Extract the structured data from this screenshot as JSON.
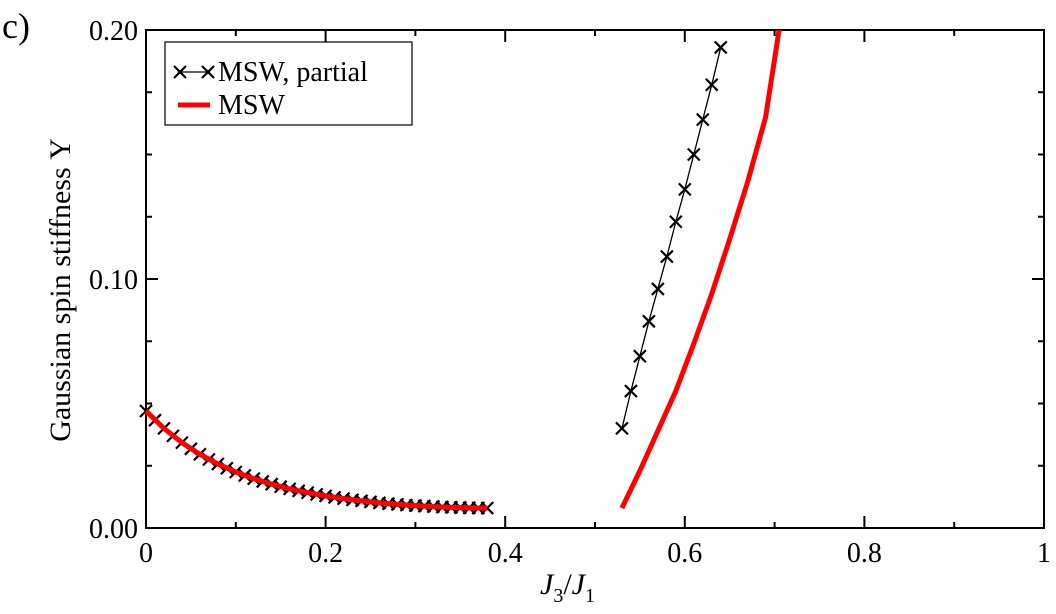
{
  "panel_label": "c)",
  "chart_data": {
    "type": "line",
    "xlabel": {
      "main": "J",
      "sub1": "3",
      "slash": "/",
      "main2": "J",
      "sub2": "1"
    },
    "ylabel": "Gaussian spin stiffness Υ",
    "xlim": [
      0,
      1
    ],
    "ylim": [
      0,
      0.2
    ],
    "x_ticks": [
      "0",
      "0.2",
      "0.4",
      "0.6",
      "0.8",
      "1"
    ],
    "x_tick_values": [
      0,
      0.2,
      0.4,
      0.6,
      0.8,
      1
    ],
    "y_ticks": [
      "0.00",
      "0.10",
      "0.20"
    ],
    "y_tick_values": [
      0,
      0.1,
      0.2
    ],
    "grid": false,
    "legend_position": "top-left",
    "series": [
      {
        "name": "MSW, partial",
        "color": "#000000",
        "marker": "x",
        "segments": [
          {
            "x": [
              0,
              0.01,
              0.02,
              0.03,
              0.04,
              0.05,
              0.06,
              0.07,
              0.08,
              0.09,
              0.1,
              0.11,
              0.12,
              0.13,
              0.14,
              0.15,
              0.16,
              0.17,
              0.18,
              0.19,
              0.2,
              0.21,
              0.22,
              0.23,
              0.24,
              0.25,
              0.26,
              0.27,
              0.28,
              0.29,
              0.3,
              0.31,
              0.32,
              0.33,
              0.34,
              0.35,
              0.36,
              0.37,
              0.38
            ],
            "y": [
              0.047,
              0.0433,
              0.04,
              0.037,
              0.0343,
              0.0318,
              0.0296,
              0.0275,
              0.0257,
              0.024,
              0.0225,
              0.0211,
              0.0198,
              0.0187,
              0.0176,
              0.0166,
              0.0157,
              0.0149,
              0.0142,
              0.0135,
              0.0129,
              0.0123,
              0.0118,
              0.0113,
              0.0109,
              0.0105,
              0.0101,
              0.0098,
              0.0095,
              0.0092,
              0.009,
              0.0088,
              0.0086,
              0.0084,
              0.0083,
              0.0082,
              0.0081,
              0.008,
              0.008
            ]
          },
          {
            "x": [
              0.53,
              0.54,
              0.55,
              0.56,
              0.57,
              0.58,
              0.59,
              0.6,
              0.61,
              0.62,
              0.63,
              0.64
            ],
            "y": [
              0.04,
              0.055,
              0.069,
              0.083,
              0.096,
              0.109,
              0.123,
              0.136,
              0.15,
              0.164,
              0.178,
              0.193
            ]
          }
        ]
      },
      {
        "name": "MSW",
        "color": "#ff0000",
        "marker": "none",
        "segments": [
          {
            "x": [
              0,
              0.02,
              0.04,
              0.06,
              0.08,
              0.1,
              0.12,
              0.14,
              0.16,
              0.18,
              0.2,
              0.22,
              0.24,
              0.26,
              0.28,
              0.3,
              0.32,
              0.34,
              0.36,
              0.38
            ],
            "y": [
              0.047,
              0.04,
              0.0343,
              0.0296,
              0.0257,
              0.0225,
              0.0198,
              0.0176,
              0.0157,
              0.0142,
              0.0129,
              0.0118,
              0.0109,
              0.0101,
              0.0095,
              0.009,
              0.0086,
              0.0083,
              0.0081,
              0.008
            ]
          },
          {
            "x": [
              0.53,
              0.55,
              0.57,
              0.59,
              0.61,
              0.63,
              0.65,
              0.67,
              0.69,
              0.705
            ],
            "y": [
              0.008,
              0.023,
              0.039,
              0.055,
              0.074,
              0.094,
              0.116,
              0.139,
              0.165,
              0.2
            ]
          }
        ]
      }
    ]
  }
}
